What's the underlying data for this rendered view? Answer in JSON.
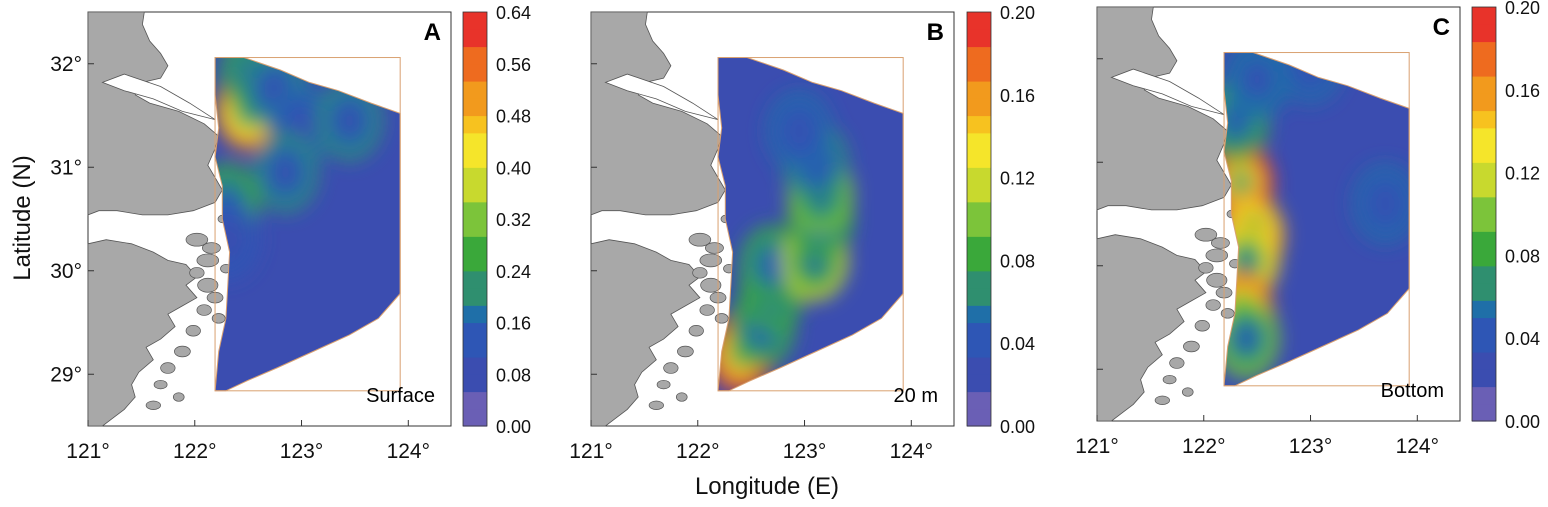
{
  "figure": {
    "ylabel": "Latitude (N)",
    "xlabel": "Longitude (E)"
  },
  "colors": {
    "land": "#a8a8a8",
    "land_edge": "#555555",
    "box_edge": "#d9a070",
    "scale": [
      "#6a5fb5",
      "#3b4db0",
      "#2e56b5",
      "#1f6fa8",
      "#2f8f6f",
      "#3aa83a",
      "#7cc43a",
      "#c8d92e",
      "#f5e52a",
      "#f7c21f",
      "#f29a1d",
      "#ee6b1f",
      "#e8332a"
    ]
  },
  "chart_data": [
    {
      "type": "heatmap",
      "panel": "A",
      "label": "Surface",
      "x_ticks": [
        "121°",
        "122°",
        "123°",
        "124°"
      ],
      "y_ticks": [
        "29°",
        "30°",
        "31°",
        "32°"
      ],
      "xlim": [
        121,
        124.4
      ],
      "ylim": [
        28.5,
        32.5
      ],
      "colorbar": {
        "min": 0.0,
        "max": 0.64,
        "ticks": [
          "0.00",
          "0.08",
          "0.16",
          "0.24",
          "0.32",
          "0.40",
          "0.48",
          "0.56",
          "0.64"
        ]
      },
      "background": 0.05,
      "hotspots": [
        {
          "lon": 122.5,
          "lat": 31.55,
          "value": 0.56
        },
        {
          "lon": 122.55,
          "lat": 31.9,
          "value": 0.26
        },
        {
          "lon": 122.75,
          "lat": 31.75,
          "value": 0.2
        },
        {
          "lon": 123.0,
          "lat": 31.4,
          "value": 0.16
        },
        {
          "lon": 123.45,
          "lat": 31.45,
          "value": 0.2
        },
        {
          "lon": 122.85,
          "lat": 30.95,
          "value": 0.22
        },
        {
          "lon": 122.3,
          "lat": 30.65,
          "value": 0.28
        },
        {
          "lon": 122.3,
          "lat": 30.3,
          "value": 0.14
        }
      ]
    },
    {
      "type": "heatmap",
      "panel": "B",
      "label": "20 m",
      "x_ticks": [
        "121°",
        "122°",
        "123°",
        "124°"
      ],
      "y_ticks": [
        "29°",
        "30°",
        "31°",
        "32°"
      ],
      "xlim": [
        121,
        124.4
      ],
      "ylim": [
        28.5,
        32.5
      ],
      "colorbar": {
        "min": 0.0,
        "max": 0.2,
        "ticks": [
          "0.00",
          "0.04",
          "0.08",
          "0.12",
          "0.16",
          "0.20"
        ]
      },
      "background": 0.02,
      "hotspots": [
        {
          "lon": 122.4,
          "lat": 29.2,
          "value": 0.2
        },
        {
          "lon": 122.6,
          "lat": 29.45,
          "value": 0.09
        },
        {
          "lon": 122.7,
          "lat": 29.8,
          "value": 0.08
        },
        {
          "lon": 122.7,
          "lat": 30.05,
          "value": 0.09
        },
        {
          "lon": 123.1,
          "lat": 30.1,
          "value": 0.11
        },
        {
          "lon": 123.15,
          "lat": 30.5,
          "value": 0.09
        },
        {
          "lon": 123.15,
          "lat": 30.75,
          "value": 0.1
        },
        {
          "lon": 123.1,
          "lat": 31.05,
          "value": 0.07
        },
        {
          "lon": 122.95,
          "lat": 31.35,
          "value": 0.05
        }
      ]
    },
    {
      "type": "heatmap",
      "panel": "C",
      "label": "Bottom",
      "x_ticks": [
        "121°",
        "122°",
        "123°",
        "124°"
      ],
      "y_ticks": [
        "29°",
        "30°",
        "31°",
        "32°"
      ],
      "xlim": [
        121,
        124.4
      ],
      "ylim": [
        28.5,
        32.5
      ],
      "colorbar": {
        "min": 0.0,
        "max": 0.2,
        "ticks": [
          "0.00",
          "0.04",
          "0.08",
          "0.12",
          "0.16",
          "0.20"
        ]
      },
      "background": 0.02,
      "hotspots": [
        {
          "lon": 122.35,
          "lat": 30.8,
          "value": 0.2
        },
        {
          "lon": 122.45,
          "lat": 30.3,
          "value": 0.16
        },
        {
          "lon": 122.4,
          "lat": 30.05,
          "value": 0.15
        },
        {
          "lon": 122.35,
          "lat": 29.55,
          "value": 0.18
        },
        {
          "lon": 122.4,
          "lat": 29.3,
          "value": 0.1
        },
        {
          "lon": 122.3,
          "lat": 31.4,
          "value": 0.09
        },
        {
          "lon": 122.5,
          "lat": 31.8,
          "value": 0.06
        },
        {
          "lon": 123.0,
          "lat": 31.95,
          "value": 0.05
        },
        {
          "lon": 123.7,
          "lat": 30.6,
          "value": 0.05
        }
      ]
    }
  ]
}
